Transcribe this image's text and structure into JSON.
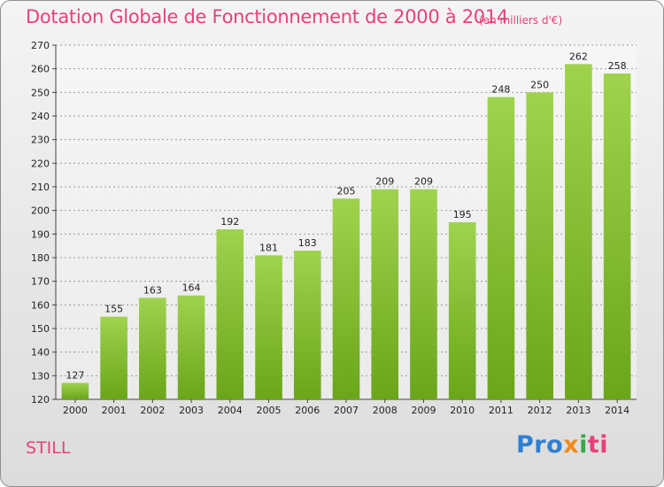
{
  "chart_data": {
    "type": "bar",
    "title": "Dotation Globale de Fonctionnement de 2000 à 2014",
    "unit": "(en milliers d'€)",
    "categories": [
      "2000",
      "2001",
      "2002",
      "2003",
      "2004",
      "2005",
      "2006",
      "2007",
      "2008",
      "2009",
      "2010",
      "2011",
      "2012",
      "2013",
      "2014"
    ],
    "values": [
      127,
      155,
      163,
      164,
      192,
      181,
      183,
      205,
      209,
      209,
      195,
      248,
      250,
      262,
      258
    ],
    "ylim": [
      120,
      270
    ],
    "yticks": [
      120,
      130,
      140,
      150,
      160,
      170,
      180,
      190,
      200,
      210,
      220,
      230,
      240,
      250,
      260,
      270
    ],
    "grid": true,
    "bar_color_top": "#9fd34e",
    "bar_color_bottom": "#6aa51a"
  },
  "commune": "STILL",
  "logo": {
    "p1": "Pro",
    "p2": "x",
    "p3": "i",
    "p4": "ti"
  }
}
